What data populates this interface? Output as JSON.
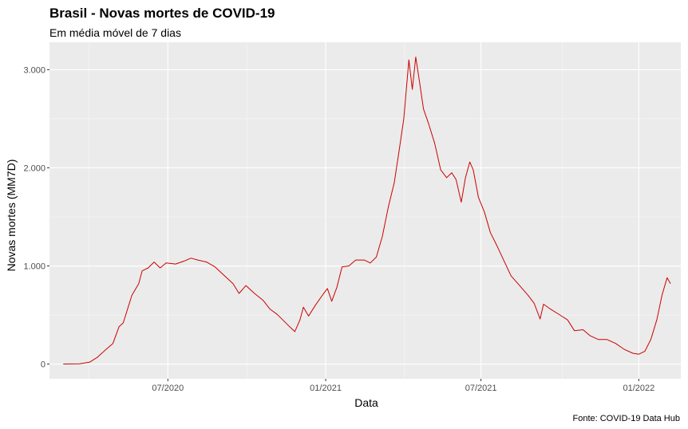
{
  "chart_data": {
    "type": "line",
    "title": "Brasil - Novas mortes de COVID-19",
    "subtitle": "Em média móvel de 7 dias",
    "xlabel": "Data",
    "ylabel": "Novas mortes (MM7D)",
    "caption": "Fonte: COVID-19 Data Hub",
    "x_ticks": [
      {
        "date": "2020-07-01",
        "label": "07/2020"
      },
      {
        "date": "2021-01-01",
        "label": "01/2021"
      },
      {
        "date": "2021-07-01",
        "label": "07/2021"
      },
      {
        "date": "2022-01-01",
        "label": "01/2022"
      }
    ],
    "y_ticks": [
      {
        "value": 0,
        "label": "0"
      },
      {
        "value": 1000,
        "label": "1.000"
      },
      {
        "value": 2000,
        "label": "2.000"
      },
      {
        "value": 3000,
        "label": "3.000"
      }
    ],
    "xlim": [
      "2020-02-14",
      "2022-02-19"
    ],
    "ylim": [
      -150,
      3280
    ],
    "grid": true,
    "line_color": "#cc0000",
    "panel_background": "#ebebeb",
    "series": [
      {
        "color": "#cc0000",
        "points": [
          [
            "2020-03-01",
            0
          ],
          [
            "2020-03-20",
            3
          ],
          [
            "2020-04-01",
            20
          ],
          [
            "2020-04-10",
            70
          ],
          [
            "2020-04-20",
            150
          ],
          [
            "2020-04-28",
            210
          ],
          [
            "2020-05-05",
            380
          ],
          [
            "2020-05-10",
            420
          ],
          [
            "2020-05-20",
            700
          ],
          [
            "2020-05-28",
            820
          ],
          [
            "2020-06-01",
            950
          ],
          [
            "2020-06-08",
            980
          ],
          [
            "2020-06-15",
            1040
          ],
          [
            "2020-06-22",
            980
          ],
          [
            "2020-06-29",
            1030
          ],
          [
            "2020-07-10",
            1020
          ],
          [
            "2020-07-20",
            1050
          ],
          [
            "2020-07-28",
            1080
          ],
          [
            "2020-08-05",
            1060
          ],
          [
            "2020-08-15",
            1040
          ],
          [
            "2020-08-25",
            990
          ],
          [
            "2020-09-05",
            900
          ],
          [
            "2020-09-15",
            820
          ],
          [
            "2020-09-22",
            720
          ],
          [
            "2020-09-30",
            800
          ],
          [
            "2020-10-10",
            720
          ],
          [
            "2020-10-20",
            650
          ],
          [
            "2020-10-28",
            560
          ],
          [
            "2020-11-05",
            510
          ],
          [
            "2020-11-12",
            450
          ],
          [
            "2020-11-20",
            380
          ],
          [
            "2020-11-26",
            330
          ],
          [
            "2020-12-02",
            450
          ],
          [
            "2020-12-06",
            580
          ],
          [
            "2020-12-12",
            490
          ],
          [
            "2020-12-20",
            600
          ],
          [
            "2020-12-28",
            700
          ],
          [
            "2021-01-03",
            770
          ],
          [
            "2021-01-08",
            640
          ],
          [
            "2021-01-14",
            780
          ],
          [
            "2021-01-20",
            990
          ],
          [
            "2021-01-28",
            1000
          ],
          [
            "2021-02-05",
            1060
          ],
          [
            "2021-02-15",
            1060
          ],
          [
            "2021-02-22",
            1030
          ],
          [
            "2021-03-01",
            1090
          ],
          [
            "2021-03-08",
            1300
          ],
          [
            "2021-03-15",
            1600
          ],
          [
            "2021-03-22",
            1850
          ],
          [
            "2021-03-28",
            2200
          ],
          [
            "2021-04-02",
            2500
          ],
          [
            "2021-04-08",
            3100
          ],
          [
            "2021-04-12",
            2800
          ],
          [
            "2021-04-16",
            3130
          ],
          [
            "2021-04-20",
            2900
          ],
          [
            "2021-04-25",
            2600
          ],
          [
            "2021-05-01",
            2450
          ],
          [
            "2021-05-08",
            2250
          ],
          [
            "2021-05-15",
            1980
          ],
          [
            "2021-05-22",
            1900
          ],
          [
            "2021-05-28",
            1950
          ],
          [
            "2021-06-02",
            1880
          ],
          [
            "2021-06-08",
            1650
          ],
          [
            "2021-06-13",
            1900
          ],
          [
            "2021-06-18",
            2060
          ],
          [
            "2021-06-22",
            1980
          ],
          [
            "2021-06-28",
            1700
          ],
          [
            "2021-07-05",
            1550
          ],
          [
            "2021-07-12",
            1340
          ],
          [
            "2021-07-20",
            1200
          ],
          [
            "2021-07-28",
            1050
          ],
          [
            "2021-08-05",
            900
          ],
          [
            "2021-08-15",
            800
          ],
          [
            "2021-08-25",
            700
          ],
          [
            "2021-09-01",
            620
          ],
          [
            "2021-09-08",
            460
          ],
          [
            "2021-09-12",
            610
          ],
          [
            "2021-09-20",
            560
          ],
          [
            "2021-10-01",
            500
          ],
          [
            "2021-10-10",
            450
          ],
          [
            "2021-10-18",
            340
          ],
          [
            "2021-10-28",
            350
          ],
          [
            "2021-11-05",
            290
          ],
          [
            "2021-11-15",
            250
          ],
          [
            "2021-11-25",
            250
          ],
          [
            "2021-12-05",
            210
          ],
          [
            "2021-12-15",
            150
          ],
          [
            "2021-12-25",
            110
          ],
          [
            "2022-01-01",
            100
          ],
          [
            "2022-01-08",
            130
          ],
          [
            "2022-01-15",
            250
          ],
          [
            "2022-01-22",
            450
          ],
          [
            "2022-01-28",
            700
          ],
          [
            "2022-02-03",
            880
          ],
          [
            "2022-02-07",
            820
          ]
        ]
      }
    ]
  }
}
